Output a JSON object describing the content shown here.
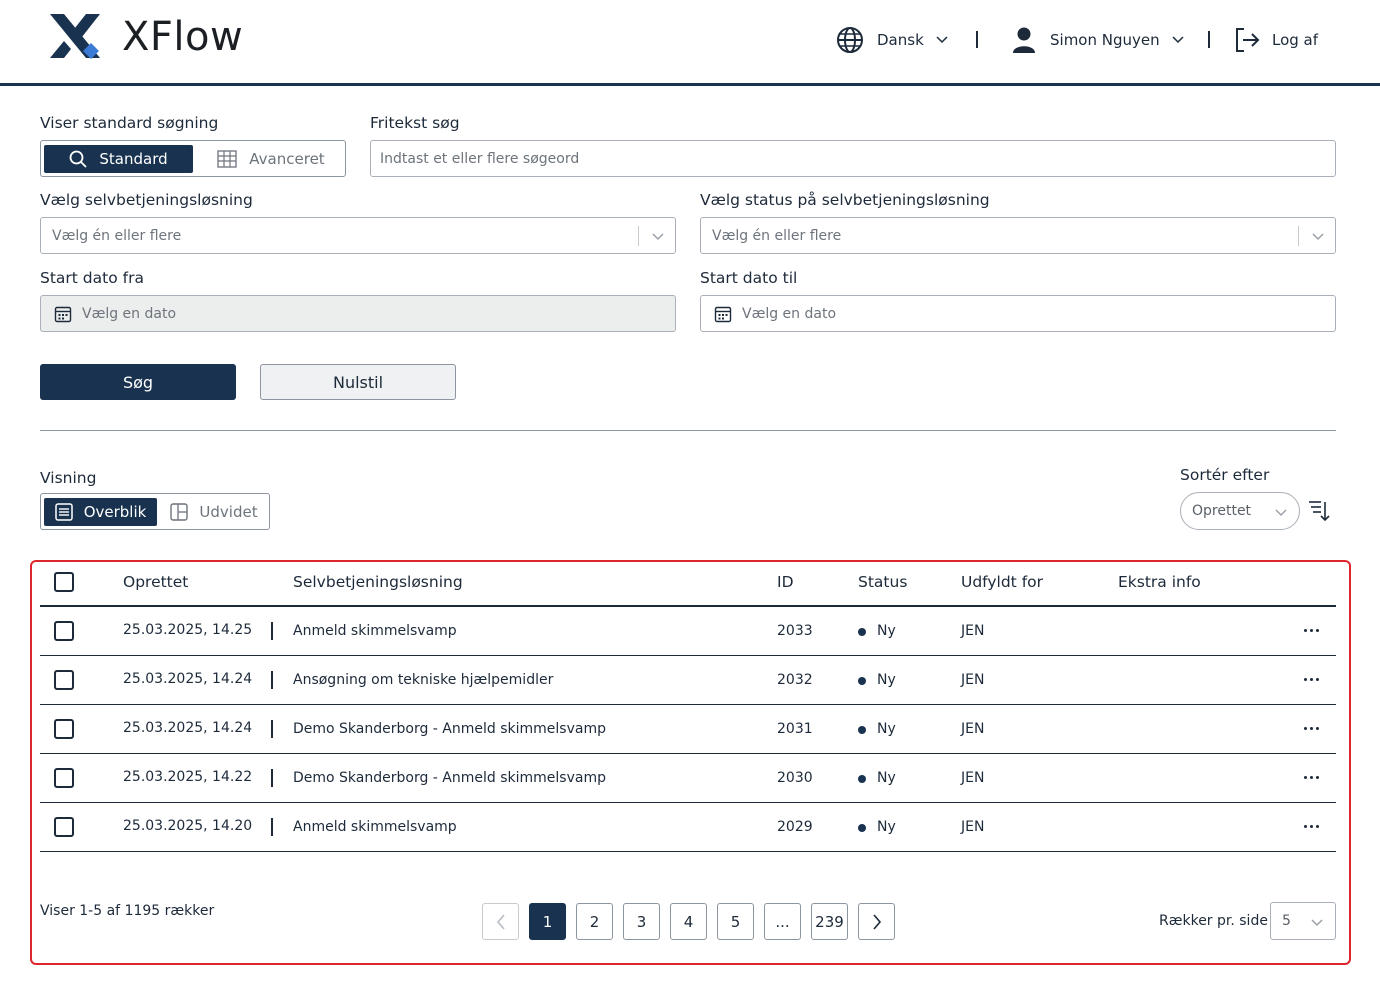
{
  "app": {
    "logo_text": "XFlow",
    "brand_colors": {
      "primary": "#18324f",
      "accent": "#3b7bd6",
      "highlight": "#e0262d"
    }
  },
  "header": {
    "language": {
      "icon": "globe-icon",
      "label": "Dansk"
    },
    "user": {
      "icon": "user-icon",
      "name": "Simon Nguyen"
    },
    "logout": {
      "icon": "logout-icon",
      "label": "Log af"
    }
  },
  "search": {
    "mode_label": "Viser standard søgning",
    "mode_standard": "Standard",
    "mode_advanced": "Avanceret",
    "freetext_label": "Fritekst søg",
    "freetext_placeholder": "Indtast et eller flere søgeord",
    "solution_label": "Vælg selvbetjeningsløsning",
    "solution_placeholder": "Vælg én eller flere",
    "status_label": "Vælg status på selvbetjeningsløsning",
    "status_placeholder": "Vælg én eller flere",
    "start_from_label": "Start dato fra",
    "start_from_placeholder": "Vælg en dato",
    "start_to_label": "Start dato til",
    "start_to_placeholder": "Vælg en dato",
    "search_button": "Søg",
    "reset_button": "Nulstil"
  },
  "view": {
    "label": "Visning",
    "overview": "Overblik",
    "extended": "Udvidet",
    "sort_label": "Sortér efter",
    "sort_value": "Oprettet"
  },
  "table": {
    "columns": {
      "created": "Oprettet",
      "solution": "Selvbetjeningsløsning",
      "id": "ID",
      "status": "Status",
      "filled_for": "Udfyldt for",
      "extra": "Ekstra info"
    },
    "rows": [
      {
        "created": "25.03.2025, 14.25",
        "solution": "Anmeld skimmelsvamp",
        "id": "2033",
        "status": "Ny",
        "filled_for": "JEN"
      },
      {
        "created": "25.03.2025, 14.24",
        "solution": "Ansøgning om tekniske hjælpemidler",
        "id": "2032",
        "status": "Ny",
        "filled_for": "JEN"
      },
      {
        "created": "25.03.2025, 14.24",
        "solution": "Demo Skanderborg - Anmeld skimmelsvamp",
        "id": "2031",
        "status": "Ny",
        "filled_for": "JEN"
      },
      {
        "created": "25.03.2025, 14.22",
        "solution": "Demo Skanderborg - Anmeld skimmelsvamp",
        "id": "2030",
        "status": "Ny",
        "filled_for": "JEN"
      },
      {
        "created": "25.03.2025, 14.20",
        "solution": "Anmeld skimmelsvamp",
        "id": "2029",
        "status": "Ny",
        "filled_for": "JEN"
      }
    ]
  },
  "pagination": {
    "summary": "Viser 1-5 af 1195 rækker",
    "pages": [
      "1",
      "2",
      "3",
      "4",
      "5",
      "...",
      "239"
    ],
    "current": "1",
    "rows_per_page_label": "Rækker pr. side",
    "rows_per_page_value": "5"
  }
}
